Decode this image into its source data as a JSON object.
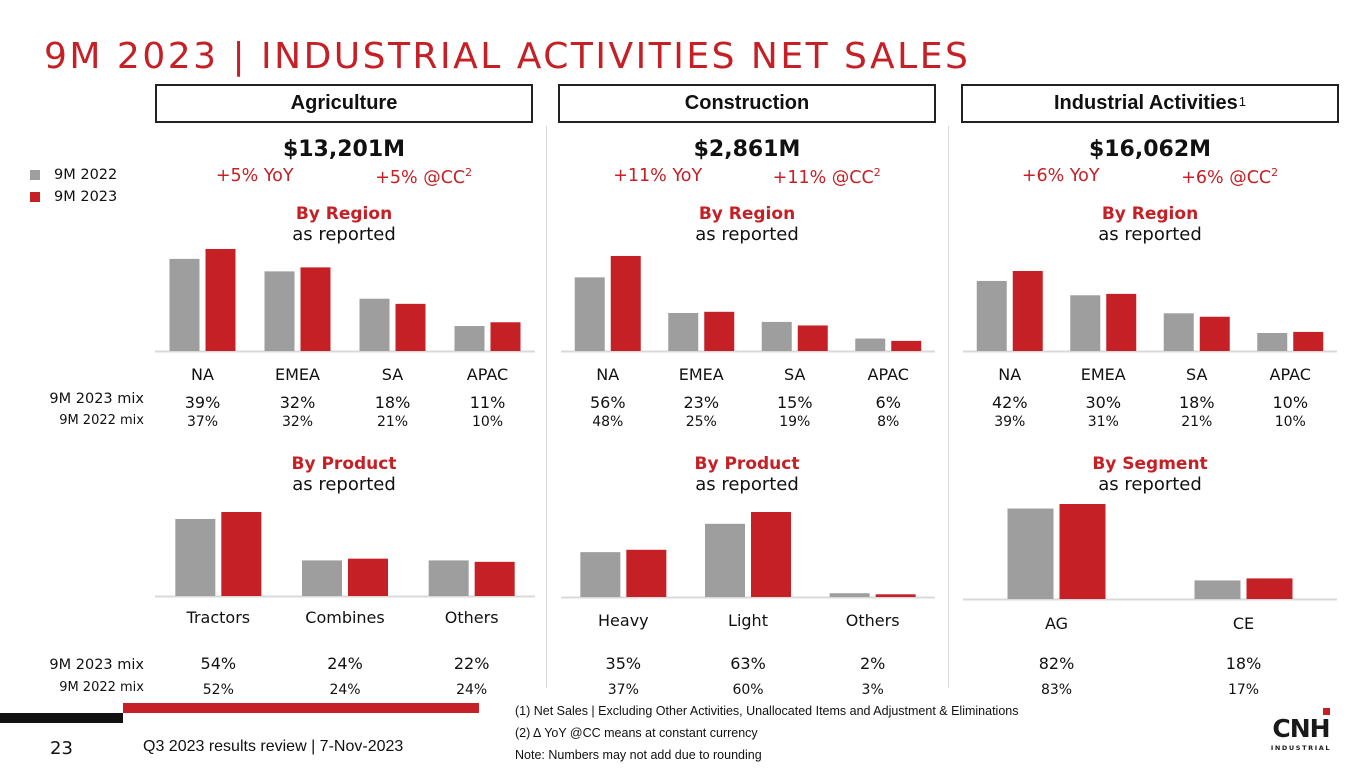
{
  "title": "9M 2023 | INDUSTRIAL ACTIVITIES NET SALES",
  "colors": {
    "accent": "#c42026",
    "prior": "#9e9e9e",
    "current": "#c42026"
  },
  "legend": [
    {
      "label": "9M 2022",
      "color": "#9e9e9e"
    },
    {
      "label": "9M 2023",
      "color": "#c42026"
    }
  ],
  "row_labels": {
    "mix_2023": "9M 2023 mix",
    "mix_2022": "9M 2022 mix"
  },
  "panels": [
    {
      "name": "Agriculture",
      "superscript": "",
      "total": "$13,201M",
      "yoy": "+5% YoY",
      "cc": "+5% @CC",
      "cc_sup": "2",
      "top": {
        "title": "By Region",
        "note": "as reported"
      },
      "bottom": {
        "title": "By Product",
        "note": "as reported"
      }
    },
    {
      "name": "Construction",
      "superscript": "",
      "total": "$2,861M",
      "yoy": "+11% YoY",
      "cc": "+11% @CC",
      "cc_sup": "2",
      "top": {
        "title": "By Region",
        "note": "as reported"
      },
      "bottom": {
        "title": "By Product",
        "note": "as reported"
      }
    },
    {
      "name": "Industrial Activities",
      "superscript": "1",
      "total": "$16,062M",
      "yoy": "+6% YoY",
      "cc": "+6% @CC",
      "cc_sup": "2",
      "top": {
        "title": "By Region",
        "note": "as reported"
      },
      "bottom": {
        "title": "By Segment",
        "note": "as reported"
      }
    }
  ],
  "chart_data": [
    {
      "type": "bar",
      "title": "Agriculture - By Region",
      "unit": "$M (approx.)",
      "categories": [
        "NA",
        "EMEA",
        "SA",
        "APAC"
      ],
      "series": [
        {
          "name": "9M 2022",
          "values": [
            4650,
            4020,
            2640,
            1260
          ]
        },
        {
          "name": "9M 2023",
          "values": [
            5150,
            4220,
            2380,
            1450
          ]
        }
      ],
      "mix_2023": [
        "39%",
        "32%",
        "18%",
        "11%"
      ],
      "mix_2022": [
        "37%",
        "32%",
        "21%",
        "10%"
      ]
    },
    {
      "type": "bar",
      "title": "Construction - By Region",
      "unit": "$M (approx.)",
      "categories": [
        "NA",
        "EMEA",
        "SA",
        "APAC"
      ],
      "series": [
        {
          "name": "9M 2022",
          "values": [
            1240,
            640,
            490,
            210
          ]
        },
        {
          "name": "9M 2023",
          "values": [
            1600,
            660,
            430,
            170
          ]
        }
      ],
      "mix_2023": [
        "56%",
        "23%",
        "15%",
        "6%"
      ],
      "mix_2022": [
        "48%",
        "25%",
        "19%",
        "8%"
      ]
    },
    {
      "type": "bar",
      "title": "Industrial Activities - By Region",
      "unit": "$M (approx.)",
      "categories": [
        "NA",
        "EMEA",
        "SA",
        "APAC"
      ],
      "series": [
        {
          "name": "9M 2022",
          "values": [
            5910,
            4700,
            3180,
            1520
          ]
        },
        {
          "name": "9M 2023",
          "values": [
            6750,
            4820,
            2890,
            1610
          ]
        }
      ],
      "mix_2023": [
        "42%",
        "30%",
        "18%",
        "10%"
      ],
      "mix_2022": [
        "39%",
        "31%",
        "21%",
        "10%"
      ]
    },
    {
      "type": "bar",
      "title": "Agriculture - By Product",
      "unit": "$M (approx.)",
      "categories": [
        "Tractors",
        "Combines",
        "Others"
      ],
      "series": [
        {
          "name": "9M 2022",
          "values": [
            6540,
            3020,
            3020
          ]
        },
        {
          "name": "9M 2023",
          "values": [
            7130,
            3170,
            2900
          ]
        }
      ],
      "mix_2023": [
        "54%",
        "24%",
        "22%"
      ],
      "mix_2022": [
        "52%",
        "24%",
        "24%"
      ]
    },
    {
      "type": "bar",
      "title": "Construction - By Product",
      "unit": "$M (approx.)",
      "categories": [
        "Heavy",
        "Light",
        "Others"
      ],
      "series": [
        {
          "name": "9M 2022",
          "values": [
            950,
            1550,
            80
          ]
        },
        {
          "name": "9M 2023",
          "values": [
            1000,
            1800,
            57
          ]
        }
      ],
      "mix_2023": [
        "35%",
        "63%",
        "2%"
      ],
      "mix_2022": [
        "37%",
        "60%",
        "3%"
      ]
    },
    {
      "type": "bar",
      "title": "Industrial Activities - By Segment",
      "unit": "$M (approx.)",
      "categories": [
        "AG",
        "CE"
      ],
      "series": [
        {
          "name": "9M 2022",
          "values": [
            12570,
            2580
          ]
        },
        {
          "name": "9M 2023",
          "values": [
            13201,
            2861
          ]
        }
      ],
      "mix_2023": [
        "82%",
        "18%"
      ],
      "mix_2022": [
        "83%",
        "17%"
      ]
    }
  ],
  "footer": {
    "page_number": "23",
    "text": "Q3 2023 results review | 7-Nov-2023",
    "notes": [
      "(1) Net Sales | Excluding Other Activities, Unallocated Items and Adjustment & Eliminations",
      "(2) Δ YoY @CC means at constant currency",
      "Note: Numbers may not add due to rounding"
    ],
    "logo_text": "CNH",
    "logo_subtext": "INDUSTRIAL"
  }
}
